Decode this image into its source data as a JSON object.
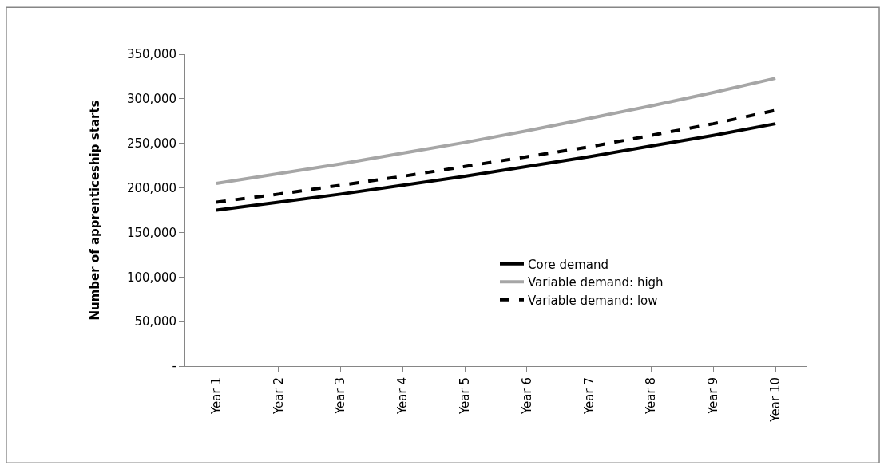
{
  "chart_data": {
    "type": "line",
    "ylabel": "Number of apprenticeship starts",
    "categories": [
      "Year 1",
      "Year 2",
      "Year 3",
      "Year 4",
      "Year 5",
      "Year 6",
      "Year 7",
      "Year 8",
      "Year 9",
      "Year 10"
    ],
    "series": [
      {
        "name": "Core demand",
        "color": "#000000",
        "line_style": "solid",
        "values": [
          175000,
          184000,
          193000,
          203000,
          213000,
          224000,
          235000,
          247000,
          259000,
          272000
        ]
      },
      {
        "name": "Variable demand: high",
        "color": "#a6a6a6",
        "line_style": "solid",
        "values": [
          205000,
          216000,
          227000,
          239000,
          251000,
          264000,
          278000,
          292000,
          307000,
          323000
        ]
      },
      {
        "name": "Variable demand: low",
        "color": "#000000",
        "line_style": "dashed",
        "values": [
          184000,
          193000,
          203000,
          213000,
          224000,
          235000,
          246000,
          259000,
          272000,
          287000
        ]
      }
    ],
    "ylim": [
      0,
      350000
    ],
    "yticks": [
      {
        "value": 0,
        "label": "-"
      },
      {
        "value": 50000,
        "label": "50,000"
      },
      {
        "value": 100000,
        "label": "100,000"
      },
      {
        "value": 150000,
        "label": "150,000"
      },
      {
        "value": 200000,
        "label": "200,000"
      },
      {
        "value": 250000,
        "label": "250,000"
      },
      {
        "value": 300000,
        "label": "300,000"
      },
      {
        "value": 350000,
        "label": "350,000"
      }
    ],
    "legend": "bottom right",
    "marker": "none"
  }
}
